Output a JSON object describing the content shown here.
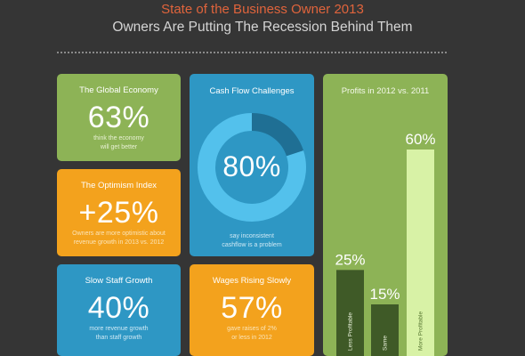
{
  "header": {
    "title": "State of the Business Owner 2013",
    "subtitle": "Owners Are Putting The Recession Behind Them"
  },
  "colors": {
    "green": "#8db356",
    "orange": "#f3a21d",
    "blue": "#2e97c4",
    "title_accent": "#e0643c",
    "donut_light": "#53c1ec",
    "donut_dark": "#1f6f94",
    "bar_dark": "#3f5a27",
    "bar_light": "#d8f2a6"
  },
  "cards": {
    "global_economy": {
      "heading": "The Global Economy",
      "value": "63%",
      "desc_1": "think the economy",
      "desc_2": "will get better"
    },
    "optimism": {
      "heading": "The Optimism Index",
      "value": "+25%",
      "desc_1": "Owners are more optimistic about",
      "desc_2": "revenue growth in 2013 vs. 2012"
    },
    "staff": {
      "heading": "Slow Staff Growth",
      "value": "40%",
      "desc_1": "more revenue growth",
      "desc_2": "than staff growth"
    },
    "cash_flow": {
      "heading": "Cash Flow Challenges",
      "value": "80%",
      "desc_1": "say inconsistent",
      "desc_2": "cashflow is a problem"
    },
    "wages": {
      "heading": "Wages Rising Slowly",
      "value": "57%",
      "desc_1": "gave raises of 2%",
      "desc_2": "or less in 2012"
    },
    "profits": {
      "heading": "Profits in 2012 vs. 2011"
    }
  },
  "chart_data": [
    {
      "type": "pie",
      "title": "Cash Flow Challenges",
      "values": [
        80,
        20
      ],
      "categories": [
        "say inconsistent cashflow is a problem",
        ""
      ],
      "center_label": "80%"
    },
    {
      "type": "bar",
      "title": "Profits in 2012 vs. 2011",
      "categories": [
        "Less Profitable",
        "Same",
        "More Profitable"
      ],
      "values": [
        25,
        15,
        60
      ],
      "value_labels": [
        "25%",
        "15%",
        "60%"
      ],
      "ylim": [
        0,
        60
      ]
    }
  ]
}
